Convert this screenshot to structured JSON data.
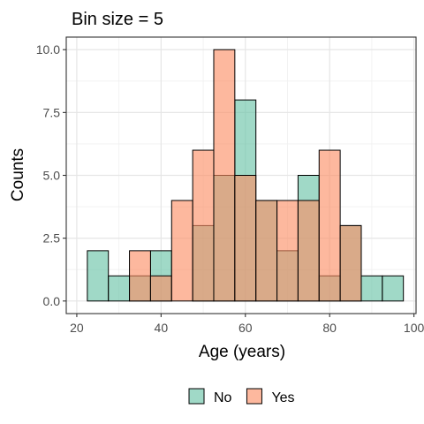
{
  "chart_data": {
    "type": "bar",
    "title": "Bin size = 5",
    "xlabel": "Age (years)",
    "ylabel": "Counts",
    "xlim": [
      17.5,
      100.5
    ],
    "ylim": [
      -0.5,
      10.5
    ],
    "xticks": [
      20,
      40,
      60,
      80,
      100
    ],
    "xtick_labels": [
      "20",
      "40",
      "60",
      "80",
      "100"
    ],
    "yticks": [
      0,
      2.5,
      5,
      7.5,
      10
    ],
    "ytick_labels": [
      "0.0",
      "2.5",
      "5.0",
      "7.5",
      "10.0"
    ],
    "bin_width": 5,
    "grid": true,
    "legend_position": "bottom",
    "colors": {
      "No": "#66c2a5",
      "Yes": "#fc8d62",
      "overlap": "#c89b7b"
    },
    "series": [
      {
        "name": "No",
        "color": "#66c2a5",
        "bins": [
          {
            "start": 22.5,
            "end": 27.5,
            "count": 2
          },
          {
            "start": 27.5,
            "end": 32.5,
            "count": 1
          },
          {
            "start": 32.5,
            "end": 37.5,
            "count": 1
          },
          {
            "start": 37.5,
            "end": 42.5,
            "count": 2
          },
          {
            "start": 47.5,
            "end": 52.5,
            "count": 3
          },
          {
            "start": 52.5,
            "end": 57.5,
            "count": 5
          },
          {
            "start": 57.5,
            "end": 62.5,
            "count": 8
          },
          {
            "start": 62.5,
            "end": 67.5,
            "count": 4
          },
          {
            "start": 67.5,
            "end": 72.5,
            "count": 2
          },
          {
            "start": 72.5,
            "end": 77.5,
            "count": 5
          },
          {
            "start": 77.5,
            "end": 82.5,
            "count": 1
          },
          {
            "start": 82.5,
            "end": 87.5,
            "count": 3
          },
          {
            "start": 87.5,
            "end": 92.5,
            "count": 1
          },
          {
            "start": 92.5,
            "end": 97.5,
            "count": 1
          }
        ]
      },
      {
        "name": "Yes",
        "color": "#fc8d62",
        "bins": [
          {
            "start": 32.5,
            "end": 37.5,
            "count": 2
          },
          {
            "start": 37.5,
            "end": 42.5,
            "count": 1
          },
          {
            "start": 42.5,
            "end": 47.5,
            "count": 4
          },
          {
            "start": 47.5,
            "end": 52.5,
            "count": 6
          },
          {
            "start": 52.5,
            "end": 57.5,
            "count": 10
          },
          {
            "start": 57.5,
            "end": 62.5,
            "count": 5
          },
          {
            "start": 62.5,
            "end": 67.5,
            "count": 4
          },
          {
            "start": 67.5,
            "end": 72.5,
            "count": 4
          },
          {
            "start": 72.5,
            "end": 77.5,
            "count": 4
          },
          {
            "start": 77.5,
            "end": 82.5,
            "count": 6
          },
          {
            "start": 82.5,
            "end": 87.5,
            "count": 3
          }
        ]
      }
    ]
  }
}
